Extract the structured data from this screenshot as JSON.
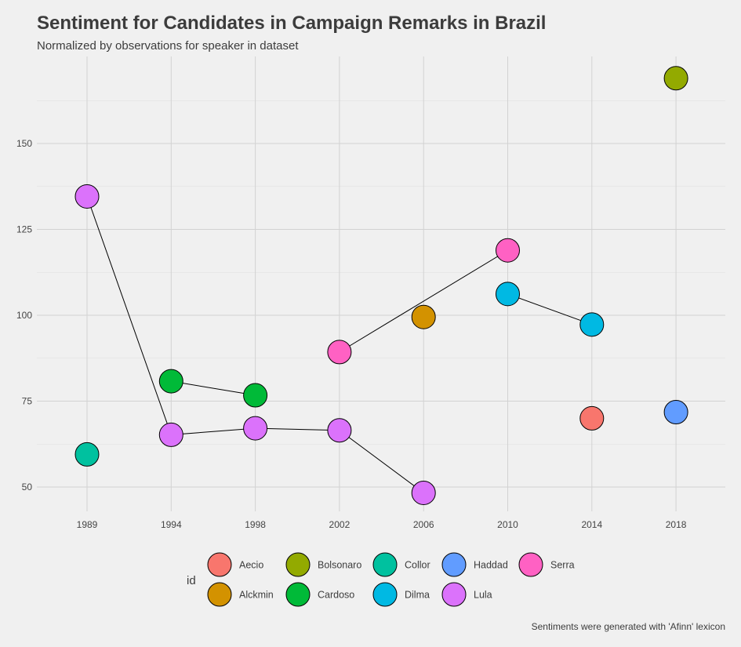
{
  "title": "Sentiment for Candidates in Campaign Remarks in Brazil",
  "subtitle": "Normalized by observations for speaker in dataset",
  "caption": "Sentiments were generated with 'Afinn' lexicon",
  "chart_data": {
    "type": "scatter",
    "title": "Sentiment for Candidates in Campaign Remarks in Brazil",
    "subtitle": "Normalized by observations for speaker in dataset",
    "xlabel": "",
    "ylabel": "",
    "x_categories": [
      "1989",
      "1994",
      "1998",
      "2002",
      "2006",
      "2010",
      "2014",
      "2018"
    ],
    "ylim": [
      43,
      172
    ],
    "yticks": [
      50,
      75,
      100,
      125,
      150
    ],
    "grid": true,
    "legend": {
      "title": "id",
      "position": "bottom",
      "entries": [
        {
          "name": "Aecio",
          "color": "#F8766D"
        },
        {
          "name": "Alckmin",
          "color": "#D39200"
        },
        {
          "name": "Bolsonaro",
          "color": "#93AA00"
        },
        {
          "name": "Cardoso",
          "color": "#00BA38"
        },
        {
          "name": "Collor",
          "color": "#00C19F"
        },
        {
          "name": "Dilma",
          "color": "#00B9E3"
        },
        {
          "name": "Haddad",
          "color": "#619CFF"
        },
        {
          "name": "Lula",
          "color": "#DB72FB"
        },
        {
          "name": "Serra",
          "color": "#FF61C3"
        }
      ]
    },
    "series": [
      {
        "name": "Aecio",
        "color": "#F8766D",
        "points": [
          {
            "x": "2014",
            "y": 70
          }
        ]
      },
      {
        "name": "Alckmin",
        "color": "#D39200",
        "points": [
          {
            "x": "2006",
            "y": 99.5
          }
        ]
      },
      {
        "name": "Bolsonaro",
        "color": "#93AA00",
        "points": [
          {
            "x": "2018",
            "y": 169
          }
        ]
      },
      {
        "name": "Cardoso",
        "color": "#00BA38",
        "points": [
          {
            "x": "1994",
            "y": 80.8
          },
          {
            "x": "1998",
            "y": 76.7
          }
        ]
      },
      {
        "name": "Collor",
        "color": "#00C19F",
        "points": [
          {
            "x": "1989",
            "y": 59.5
          }
        ]
      },
      {
        "name": "Dilma",
        "color": "#00B9E3",
        "points": [
          {
            "x": "2010",
            "y": 106.2
          },
          {
            "x": "2014",
            "y": 97.3
          }
        ]
      },
      {
        "name": "Haddad",
        "color": "#619CFF",
        "points": [
          {
            "x": "2018",
            "y": 71.8
          }
        ]
      },
      {
        "name": "Lula",
        "color": "#DB72FB",
        "points": [
          {
            "x": "1989",
            "y": 134.6
          },
          {
            "x": "1994",
            "y": 65.2
          },
          {
            "x": "1998",
            "y": 67.1
          },
          {
            "x": "2002",
            "y": 66.5
          },
          {
            "x": "2006",
            "y": 48.3
          }
        ]
      },
      {
        "name": "Serra",
        "color": "#FF61C3",
        "points": [
          {
            "x": "2002",
            "y": 89.3
          },
          {
            "x": "2010",
            "y": 118.9
          }
        ]
      }
    ]
  }
}
